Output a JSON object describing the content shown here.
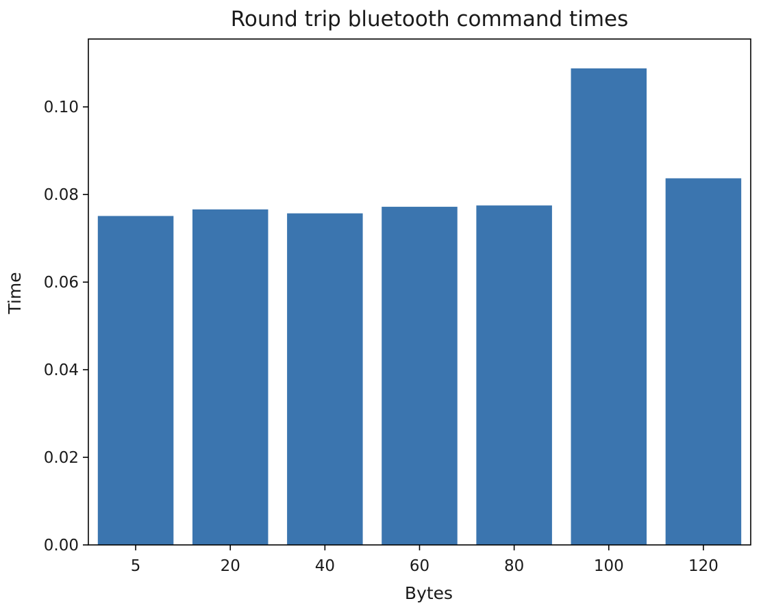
{
  "chart_data": {
    "type": "bar",
    "title": "Round trip bluetooth command times",
    "xlabel": "Bytes",
    "ylabel": "Time",
    "categories": [
      "5",
      "20",
      "40",
      "60",
      "80",
      "100",
      "120"
    ],
    "values": [
      0.0751,
      0.0766,
      0.0757,
      0.0772,
      0.0775,
      0.1088,
      0.0837
    ],
    "ylim": [
      0,
      0.1155
    ],
    "yticks": [
      "0.00",
      "0.02",
      "0.04",
      "0.06",
      "0.08",
      "0.10"
    ],
    "ytick_values": [
      0.0,
      0.02,
      0.04,
      0.06,
      0.08,
      0.1
    ],
    "grid": false,
    "bar_color": "#3b75af"
  }
}
